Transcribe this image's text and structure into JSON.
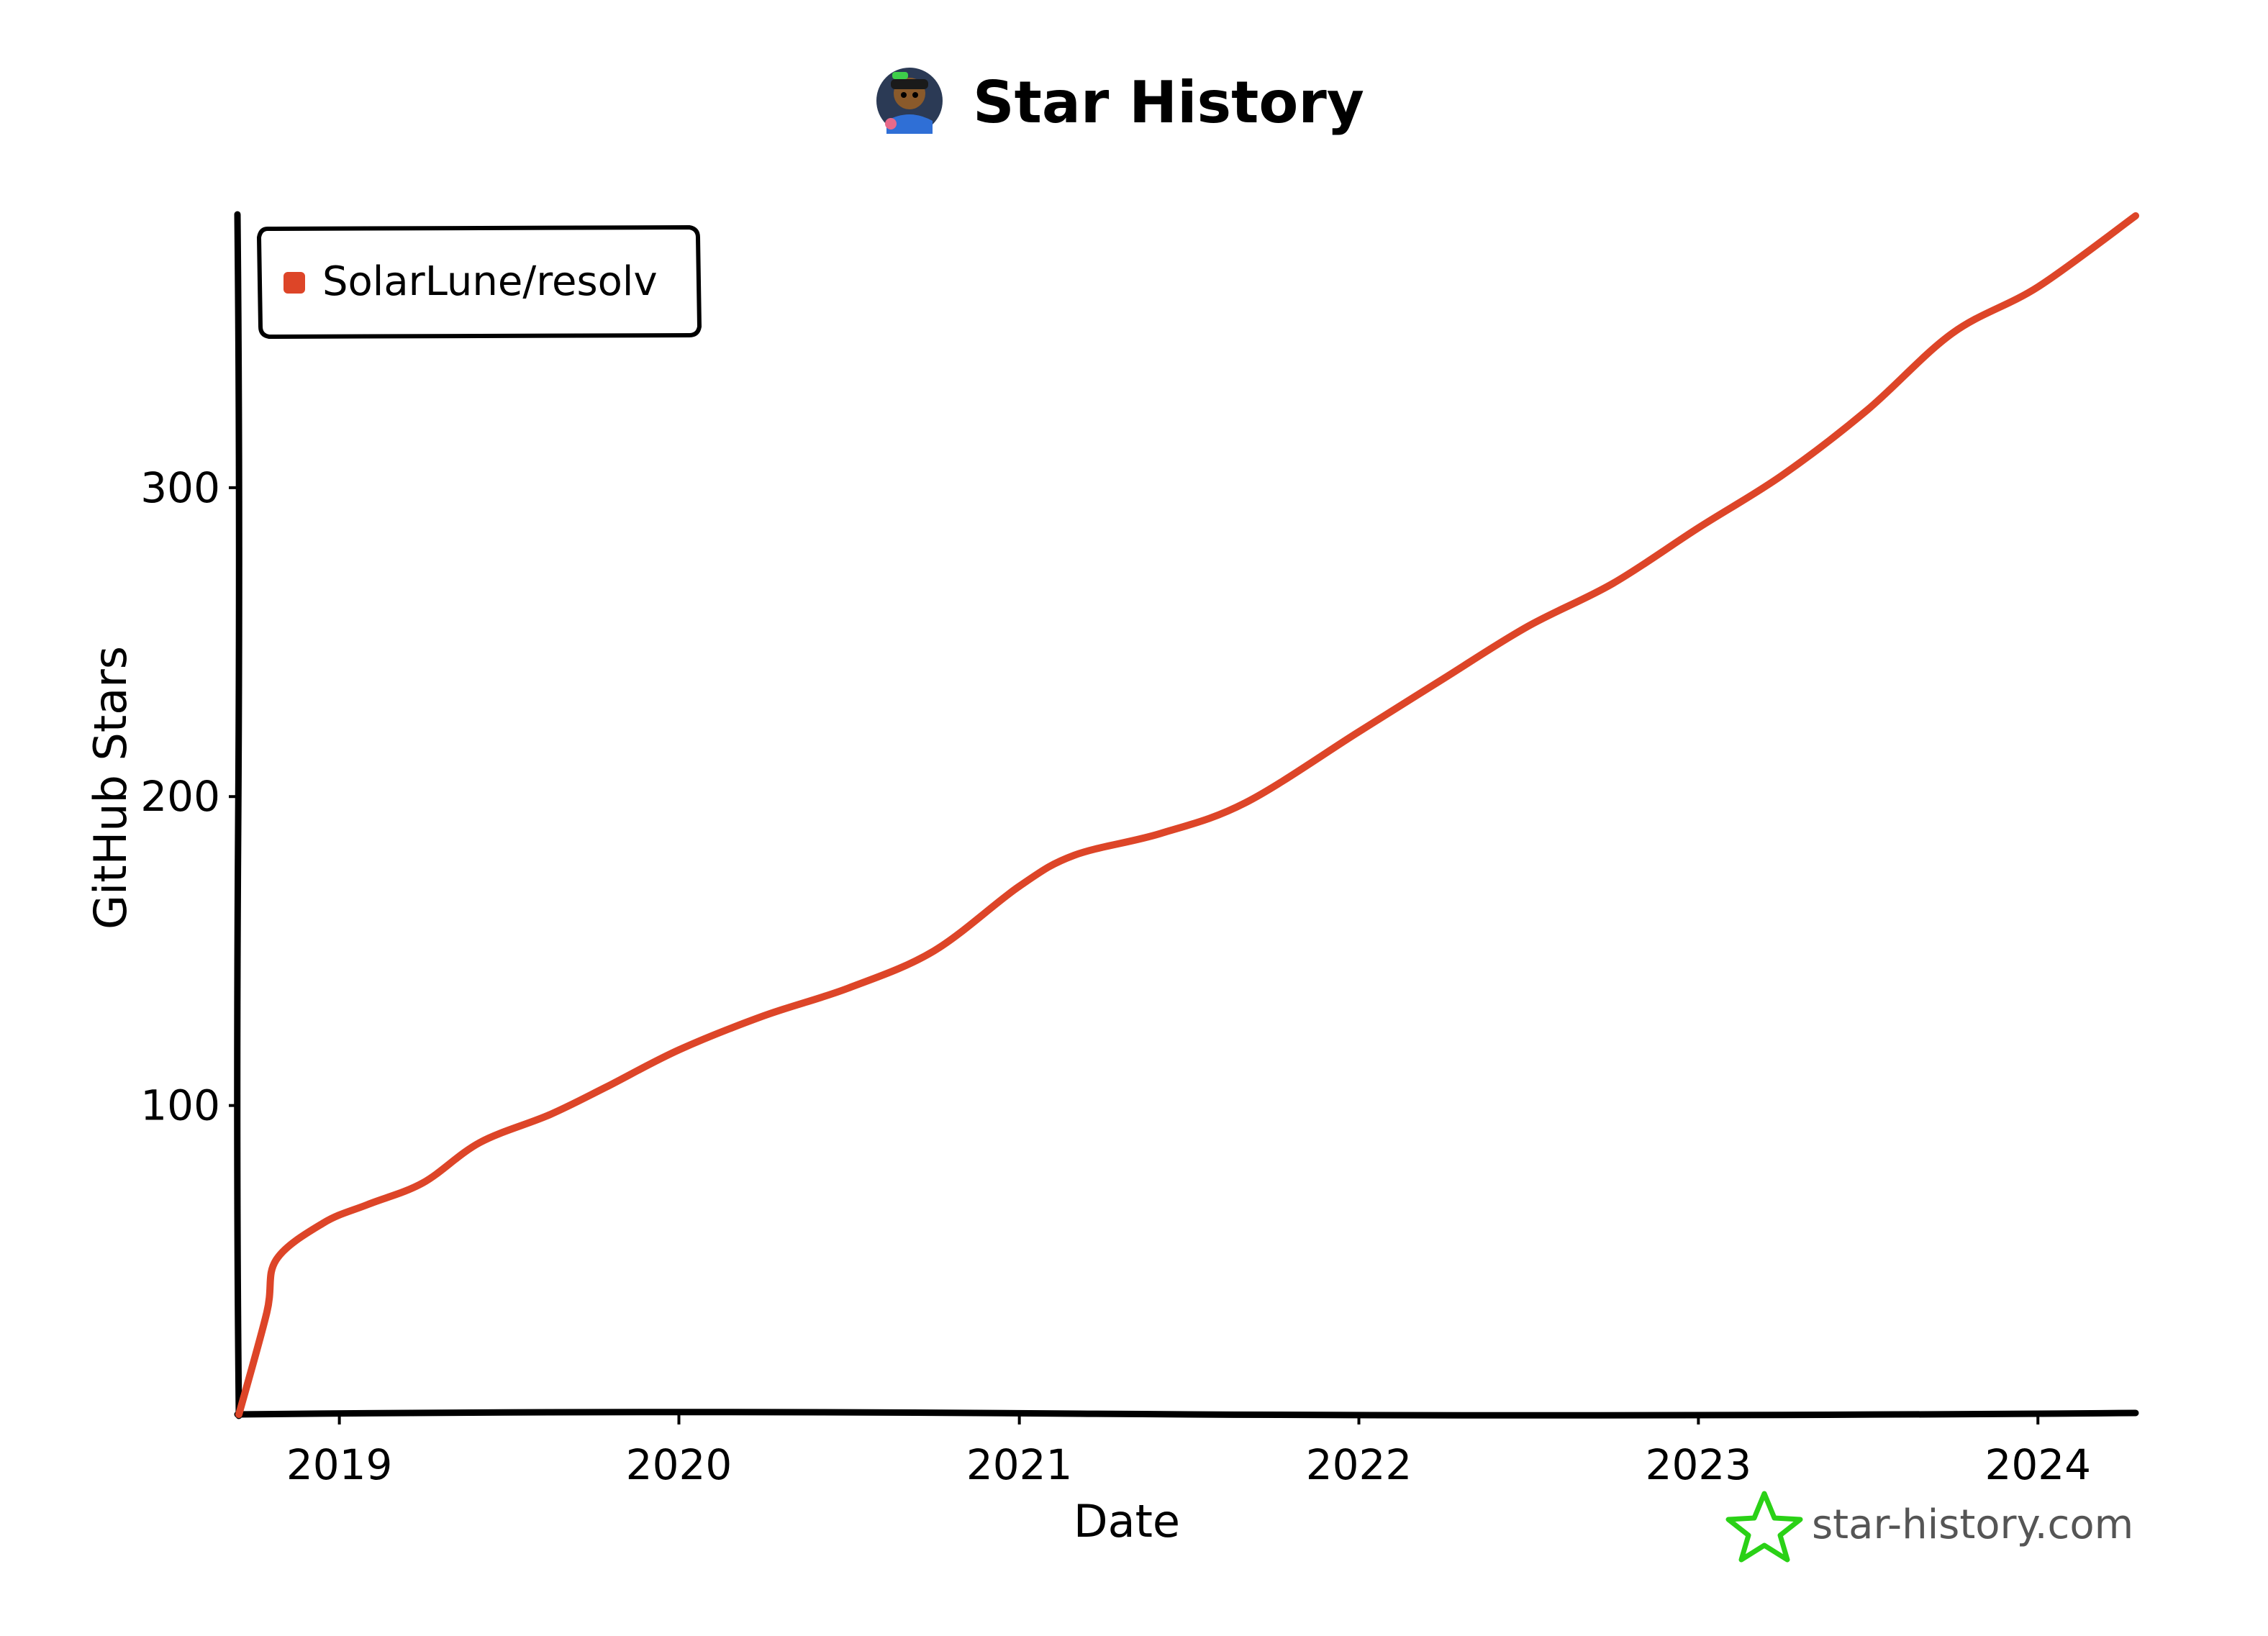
{
  "header": {
    "title": "Star History",
    "logo_icon": "avatar-icon"
  },
  "branding": {
    "text": "star-history.com",
    "icon": "star-icon",
    "icon_color": "#2ad116"
  },
  "chart_data": {
    "type": "line",
    "title": "Star History",
    "xlabel": "Date",
    "ylabel": "GitHub Stars",
    "x_ticks": [
      "2019",
      "2020",
      "2021",
      "2022",
      "2023",
      "2024"
    ],
    "y_ticks": [
      100,
      200,
      300
    ],
    "xlim": [
      "2018-09-15",
      "2024-04-15"
    ],
    "ylim": [
      0,
      388
    ],
    "grid": false,
    "legend_position": "top-left",
    "series": [
      {
        "name": "SolarLune/resolv",
        "color": "#dd4528",
        "points": [
          {
            "x": "2018-09-15",
            "y": 0
          },
          {
            "x": "2018-10-15",
            "y": 33
          },
          {
            "x": "2018-10-25",
            "y": 50
          },
          {
            "x": "2018-12-15",
            "y": 62
          },
          {
            "x": "2019-02-01",
            "y": 68
          },
          {
            "x": "2019-04-01",
            "y": 75
          },
          {
            "x": "2019-06-01",
            "y": 88
          },
          {
            "x": "2019-08-15",
            "y": 97
          },
          {
            "x": "2019-10-15",
            "y": 106
          },
          {
            "x": "2020-01-01",
            "y": 118
          },
          {
            "x": "2020-04-01",
            "y": 129
          },
          {
            "x": "2020-07-01",
            "y": 138
          },
          {
            "x": "2020-10-01",
            "y": 150
          },
          {
            "x": "2021-01-01",
            "y": 171
          },
          {
            "x": "2021-03-01",
            "y": 181
          },
          {
            "x": "2021-06-01",
            "y": 188
          },
          {
            "x": "2021-09-01",
            "y": 198
          },
          {
            "x": "2022-01-01",
            "y": 221
          },
          {
            "x": "2022-04-01",
            "y": 238
          },
          {
            "x": "2022-07-01",
            "y": 255
          },
          {
            "x": "2022-10-01",
            "y": 269
          },
          {
            "x": "2023-01-01",
            "y": 287
          },
          {
            "x": "2023-04-01",
            "y": 304
          },
          {
            "x": "2023-07-01",
            "y": 325
          },
          {
            "x": "2023-10-01",
            "y": 350
          },
          {
            "x": "2024-01-01",
            "y": 365
          },
          {
            "x": "2024-04-15",
            "y": 388
          }
        ]
      }
    ]
  }
}
